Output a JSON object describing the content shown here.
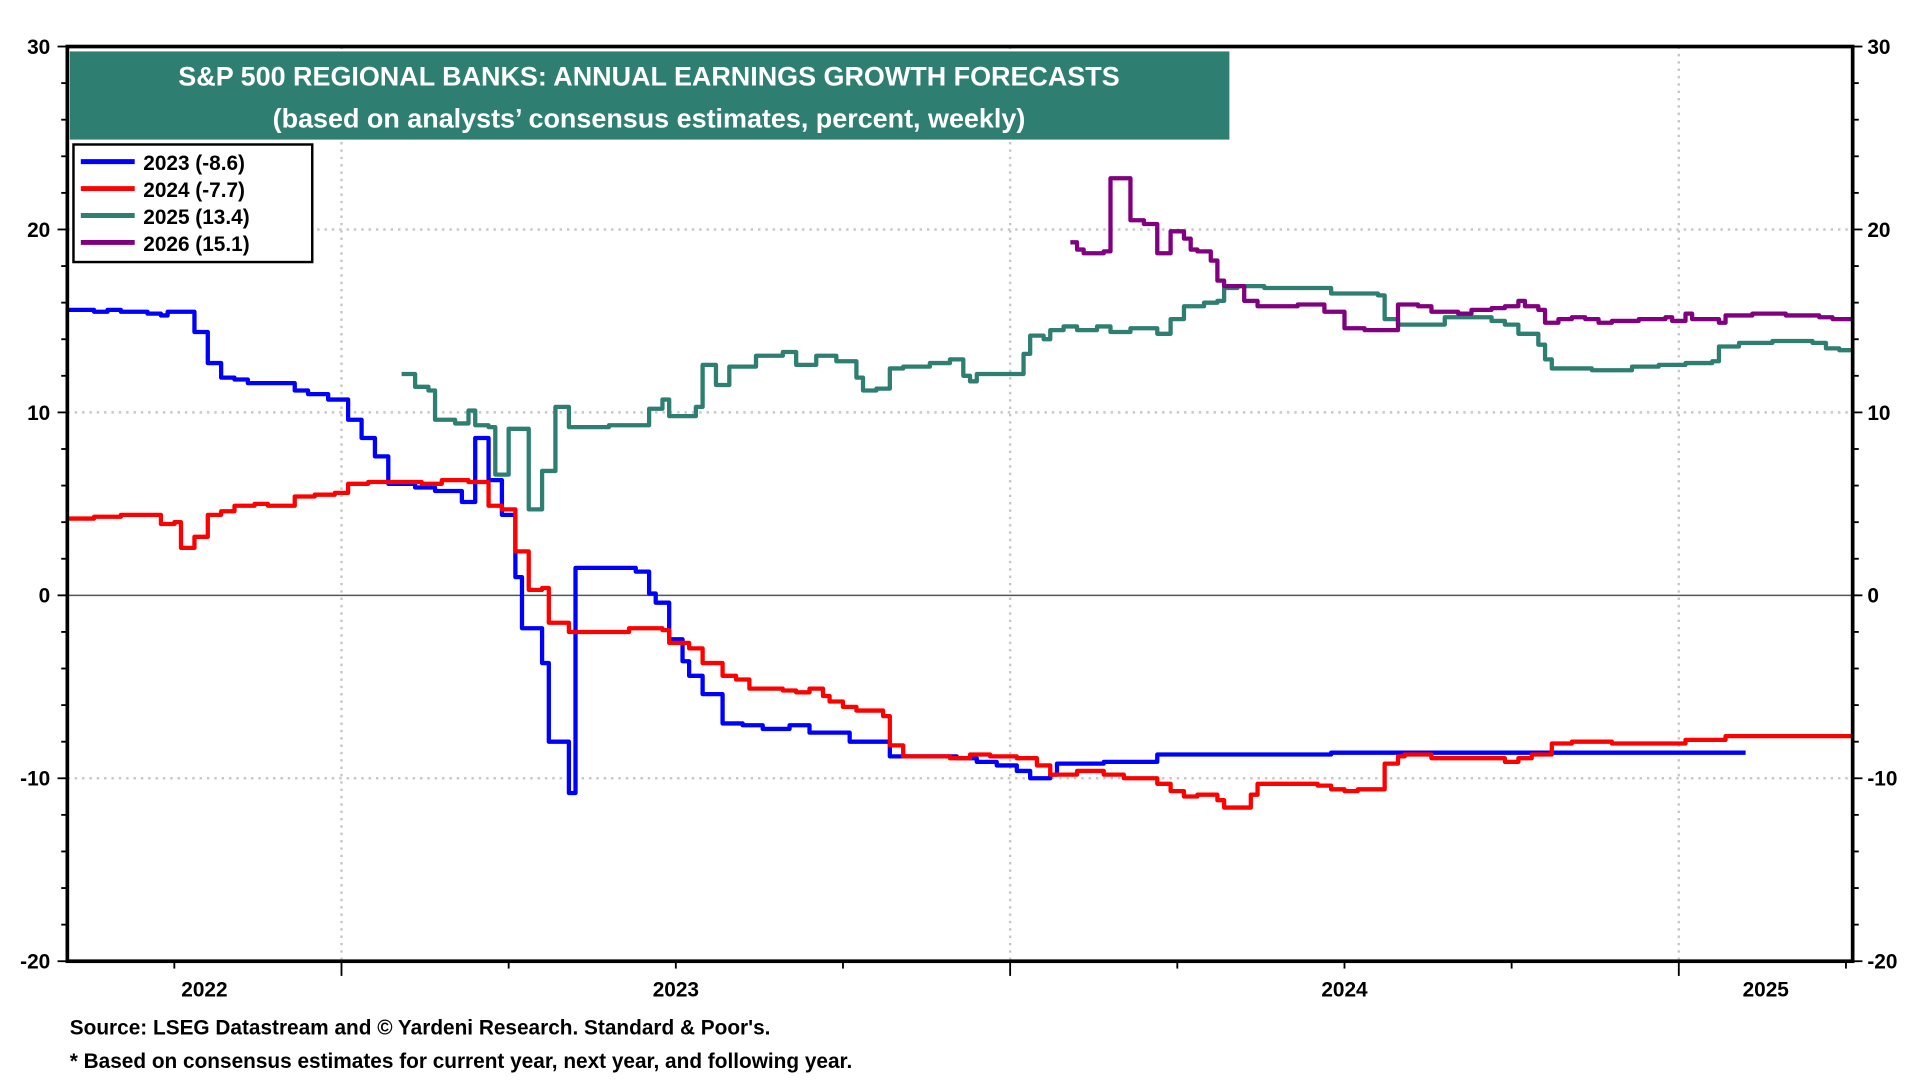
{
  "chart_data": {
    "type": "line",
    "title": "S&P 500 REGIONAL BANKS: ANNUAL EARNINGS GROWTH FORECASTS",
    "subtitle": "(based on analysts’ consensus estimates, percent, weekly)",
    "xlabel": "",
    "ylabel": "",
    "x_unit": "decimal year",
    "xlim": [
      2022.59,
      2025.26
    ],
    "ylim": [
      -20,
      30
    ],
    "yticks": [
      30,
      20,
      10,
      0,
      -10,
      -20
    ],
    "xtick_labels": [
      "2022",
      "2023",
      "2024",
      "2025"
    ],
    "grid": true,
    "legend_position": "top-left",
    "step": true,
    "series": [
      {
        "name": "2023 (-8.6)",
        "color": "#0000ff",
        "points": [
          [
            2022.59,
            15.6
          ],
          [
            2022.63,
            15.5
          ],
          [
            2022.65,
            15.6
          ],
          [
            2022.67,
            15.5
          ],
          [
            2022.71,
            15.4
          ],
          [
            2022.73,
            15.3
          ],
          [
            2022.74,
            15.5
          ],
          [
            2022.78,
            14.4
          ],
          [
            2022.8,
            12.7
          ],
          [
            2022.82,
            11.9
          ],
          [
            2022.84,
            11.8
          ],
          [
            2022.86,
            11.6
          ],
          [
            2022.93,
            11.2
          ],
          [
            2022.95,
            11.0
          ],
          [
            2022.98,
            10.7
          ],
          [
            2023.01,
            9.6
          ],
          [
            2023.03,
            8.6
          ],
          [
            2023.05,
            7.6
          ],
          [
            2023.07,
            6.1
          ],
          [
            2023.11,
            5.9
          ],
          [
            2023.14,
            5.7
          ],
          [
            2023.18,
            5.1
          ],
          [
            2023.2,
            8.6
          ],
          [
            2023.22,
            6.3
          ],
          [
            2023.24,
            4.4
          ],
          [
            2023.26,
            1.0
          ],
          [
            2023.27,
            -1.8
          ],
          [
            2023.3,
            -3.7
          ],
          [
            2023.31,
            -8.0
          ],
          [
            2023.34,
            -10.8
          ],
          [
            2023.35,
            1.5
          ],
          [
            2023.43,
            1.5
          ],
          [
            2023.44,
            1.3
          ],
          [
            2023.46,
            0.1
          ],
          [
            2023.47,
            -0.4
          ],
          [
            2023.49,
            -2.4
          ],
          [
            2023.51,
            -3.6
          ],
          [
            2023.52,
            -4.4
          ],
          [
            2023.54,
            -5.4
          ],
          [
            2023.57,
            -7.0
          ],
          [
            2023.6,
            -7.1
          ],
          [
            2023.63,
            -7.3
          ],
          [
            2023.67,
            -7.1
          ],
          [
            2023.7,
            -7.5
          ],
          [
            2023.76,
            -8.0
          ],
          [
            2023.82,
            -8.8
          ],
          [
            2023.92,
            -8.9
          ],
          [
            2023.95,
            -9.1
          ],
          [
            2023.98,
            -9.3
          ],
          [
            2024.01,
            -9.6
          ],
          [
            2024.03,
            -10.0
          ],
          [
            2024.06,
            -9.8
          ],
          [
            2024.07,
            -9.2
          ],
          [
            2024.14,
            -9.1
          ],
          [
            2024.22,
            -8.7
          ],
          [
            2024.48,
            -8.6
          ],
          [
            2025.1,
            -8.6
          ]
        ]
      },
      {
        "name": "2024 (-7.7)",
        "color": "#ff0000",
        "points": [
          [
            2022.59,
            4.2
          ],
          [
            2022.63,
            4.3
          ],
          [
            2022.67,
            4.4
          ],
          [
            2022.72,
            4.4
          ],
          [
            2022.73,
            3.9
          ],
          [
            2022.75,
            4.0
          ],
          [
            2022.76,
            2.6
          ],
          [
            2022.78,
            3.2
          ],
          [
            2022.8,
            4.4
          ],
          [
            2022.82,
            4.6
          ],
          [
            2022.84,
            4.9
          ],
          [
            2022.87,
            5.0
          ],
          [
            2022.89,
            4.9
          ],
          [
            2022.93,
            5.4
          ],
          [
            2022.96,
            5.5
          ],
          [
            2022.99,
            5.6
          ],
          [
            2023.01,
            6.1
          ],
          [
            2023.04,
            6.2
          ],
          [
            2023.12,
            6.1
          ],
          [
            2023.15,
            6.3
          ],
          [
            2023.19,
            6.2
          ],
          [
            2023.22,
            4.9
          ],
          [
            2023.24,
            4.7
          ],
          [
            2023.26,
            2.4
          ],
          [
            2023.28,
            0.3
          ],
          [
            2023.3,
            0.4
          ],
          [
            2023.31,
            -1.5
          ],
          [
            2023.34,
            -2.0
          ],
          [
            2023.43,
            -1.8
          ],
          [
            2023.48,
            -1.9
          ],
          [
            2023.49,
            -2.6
          ],
          [
            2023.52,
            -2.9
          ],
          [
            2023.54,
            -3.7
          ],
          [
            2023.57,
            -4.4
          ],
          [
            2023.59,
            -4.6
          ],
          [
            2023.61,
            -5.1
          ],
          [
            2023.66,
            -5.2
          ],
          [
            2023.68,
            -5.3
          ],
          [
            2023.7,
            -5.1
          ],
          [
            2023.72,
            -5.5
          ],
          [
            2023.73,
            -5.8
          ],
          [
            2023.75,
            -6.1
          ],
          [
            2023.77,
            -6.3
          ],
          [
            2023.81,
            -6.6
          ],
          [
            2023.82,
            -8.2
          ],
          [
            2023.84,
            -8.8
          ],
          [
            2023.91,
            -8.9
          ],
          [
            2023.94,
            -8.7
          ],
          [
            2023.97,
            -8.8
          ],
          [
            2024.01,
            -8.9
          ],
          [
            2024.04,
            -9.3
          ],
          [
            2024.06,
            -9.8
          ],
          [
            2024.1,
            -9.6
          ],
          [
            2024.14,
            -9.8
          ],
          [
            2024.17,
            -10.0
          ],
          [
            2024.22,
            -10.3
          ],
          [
            2024.24,
            -10.7
          ],
          [
            2024.26,
            -11.0
          ],
          [
            2024.28,
            -10.9
          ],
          [
            2024.31,
            -11.2
          ],
          [
            2024.32,
            -11.6
          ],
          [
            2024.36,
            -10.9
          ],
          [
            2024.37,
            -10.3
          ],
          [
            2024.46,
            -10.4
          ],
          [
            2024.48,
            -10.6
          ],
          [
            2024.5,
            -10.7
          ],
          [
            2024.52,
            -10.6
          ],
          [
            2024.56,
            -9.2
          ],
          [
            2024.58,
            -8.8
          ],
          [
            2024.59,
            -8.7
          ],
          [
            2024.63,
            -8.9
          ],
          [
            2024.74,
            -9.1
          ],
          [
            2024.76,
            -8.9
          ],
          [
            2024.78,
            -8.7
          ],
          [
            2024.81,
            -8.1
          ],
          [
            2024.84,
            -8.0
          ],
          [
            2024.9,
            -8.1
          ],
          [
            2025.01,
            -7.9
          ],
          [
            2025.07,
            -7.7
          ],
          [
            2025.26,
            -7.7
          ]
        ]
      },
      {
        "name": "2025 (13.4)",
        "color": "#2e7f72",
        "points": [
          [
            2023.09,
            12.1
          ],
          [
            2023.11,
            11.4
          ],
          [
            2023.13,
            11.2
          ],
          [
            2023.14,
            9.6
          ],
          [
            2023.17,
            9.4
          ],
          [
            2023.19,
            10.1
          ],
          [
            2023.2,
            9.3
          ],
          [
            2023.22,
            9.2
          ],
          [
            2023.23,
            6.6
          ],
          [
            2023.25,
            9.1
          ],
          [
            2023.28,
            4.7
          ],
          [
            2023.3,
            6.8
          ],
          [
            2023.32,
            10.3
          ],
          [
            2023.34,
            9.2
          ],
          [
            2023.4,
            9.3
          ],
          [
            2023.46,
            10.2
          ],
          [
            2023.48,
            10.7
          ],
          [
            2023.49,
            9.8
          ],
          [
            2023.53,
            10.3
          ],
          [
            2023.54,
            12.6
          ],
          [
            2023.56,
            11.5
          ],
          [
            2023.58,
            12.5
          ],
          [
            2023.62,
            13.1
          ],
          [
            2023.66,
            13.3
          ],
          [
            2023.68,
            12.6
          ],
          [
            2023.71,
            13.1
          ],
          [
            2023.74,
            12.8
          ],
          [
            2023.77,
            11.9
          ],
          [
            2023.78,
            11.2
          ],
          [
            2023.8,
            11.3
          ],
          [
            2023.82,
            12.4
          ],
          [
            2023.84,
            12.5
          ],
          [
            2023.88,
            12.7
          ],
          [
            2023.91,
            12.9
          ],
          [
            2023.93,
            12.0
          ],
          [
            2023.94,
            11.7
          ],
          [
            2023.95,
            12.1
          ],
          [
            2024.01,
            12.1
          ],
          [
            2024.02,
            13.2
          ],
          [
            2024.03,
            14.2
          ],
          [
            2024.05,
            14.0
          ],
          [
            2024.06,
            14.5
          ],
          [
            2024.08,
            14.7
          ],
          [
            2024.1,
            14.5
          ],
          [
            2024.13,
            14.7
          ],
          [
            2024.15,
            14.4
          ],
          [
            2024.18,
            14.6
          ],
          [
            2024.22,
            14.3
          ],
          [
            2024.24,
            15.1
          ],
          [
            2024.26,
            15.8
          ],
          [
            2024.29,
            16.0
          ],
          [
            2024.31,
            16.1
          ],
          [
            2024.32,
            16.8
          ],
          [
            2024.34,
            16.9
          ],
          [
            2024.38,
            16.8
          ],
          [
            2024.48,
            16.5
          ],
          [
            2024.55,
            16.4
          ],
          [
            2024.56,
            15.1
          ],
          [
            2024.58,
            14.8
          ],
          [
            2024.65,
            15.2
          ],
          [
            2024.72,
            15.0
          ],
          [
            2024.74,
            14.8
          ],
          [
            2024.76,
            14.3
          ],
          [
            2024.79,
            13.7
          ],
          [
            2024.8,
            12.9
          ],
          [
            2024.81,
            12.4
          ],
          [
            2024.87,
            12.3
          ],
          [
            2024.93,
            12.5
          ],
          [
            2024.97,
            12.6
          ],
          [
            2025.01,
            12.7
          ],
          [
            2025.05,
            12.8
          ],
          [
            2025.06,
            13.6
          ],
          [
            2025.09,
            13.8
          ],
          [
            2025.14,
            13.9
          ],
          [
            2025.2,
            13.8
          ],
          [
            2025.22,
            13.5
          ],
          [
            2025.24,
            13.4
          ],
          [
            2025.26,
            13.4
          ]
        ]
      },
      {
        "name": "2026 (15.1)",
        "color": "#800080",
        "points": [
          [
            2024.09,
            19.3
          ],
          [
            2024.1,
            18.9
          ],
          [
            2024.11,
            18.7
          ],
          [
            2024.14,
            18.8
          ],
          [
            2024.15,
            22.8
          ],
          [
            2024.18,
            20.5
          ],
          [
            2024.2,
            20.3
          ],
          [
            2024.22,
            18.7
          ],
          [
            2024.24,
            19.9
          ],
          [
            2024.26,
            19.5
          ],
          [
            2024.27,
            18.9
          ],
          [
            2024.28,
            18.8
          ],
          [
            2024.3,
            18.3
          ],
          [
            2024.31,
            17.2
          ],
          [
            2024.32,
            16.9
          ],
          [
            2024.35,
            16.1
          ],
          [
            2024.37,
            15.8
          ],
          [
            2024.43,
            15.9
          ],
          [
            2024.47,
            15.5
          ],
          [
            2024.5,
            14.6
          ],
          [
            2024.53,
            14.5
          ],
          [
            2024.58,
            15.9
          ],
          [
            2024.61,
            15.8
          ],
          [
            2024.63,
            15.5
          ],
          [
            2024.67,
            15.4
          ],
          [
            2024.69,
            15.6
          ],
          [
            2024.72,
            15.7
          ],
          [
            2024.74,
            15.8
          ],
          [
            2024.76,
            16.1
          ],
          [
            2024.77,
            15.8
          ],
          [
            2024.79,
            15.6
          ],
          [
            2024.8,
            14.9
          ],
          [
            2024.82,
            15.1
          ],
          [
            2024.84,
            15.2
          ],
          [
            2024.86,
            15.1
          ],
          [
            2024.88,
            14.9
          ],
          [
            2024.9,
            15.0
          ],
          [
            2024.94,
            15.1
          ],
          [
            2024.98,
            15.2
          ],
          [
            2024.99,
            15.0
          ],
          [
            2025.01,
            15.4
          ],
          [
            2025.02,
            15.1
          ],
          [
            2025.06,
            14.9
          ],
          [
            2025.07,
            15.3
          ],
          [
            2025.11,
            15.4
          ],
          [
            2025.16,
            15.3
          ],
          [
            2025.21,
            15.2
          ],
          [
            2025.23,
            15.1
          ],
          [
            2025.26,
            15.1
          ]
        ]
      }
    ]
  },
  "footer": {
    "source": "Source: LSEG Datastream and © Yardeni Research. Standard & Poor's.",
    "note": "* Based on consensus estimates for current year, next year, and following year."
  },
  "colors": {
    "title_bg": "#2e7f72",
    "title_text": "#ffffff",
    "grid": "#c8c8c8"
  }
}
